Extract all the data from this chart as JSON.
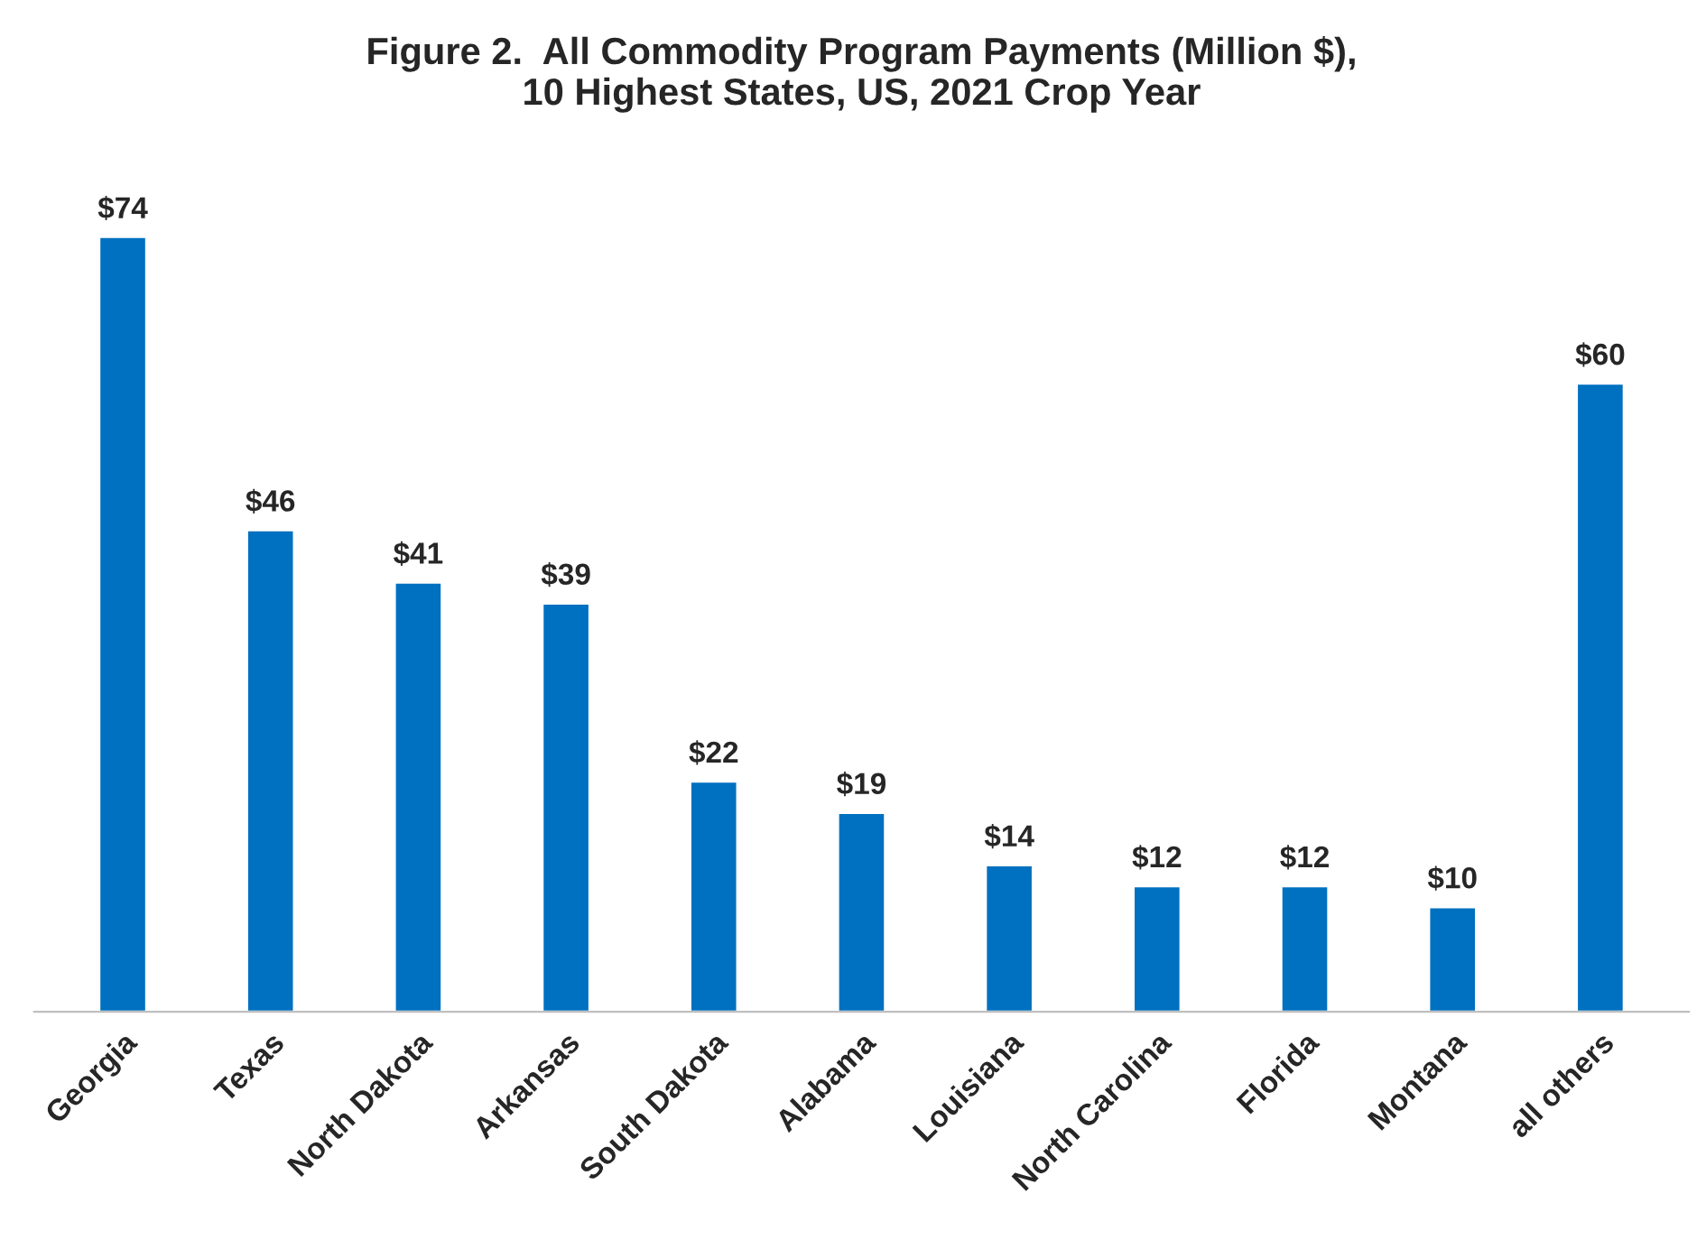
{
  "chart_data": {
    "type": "bar",
    "title": "Figure 2.  All Commodity Program Payments (Million $),\n10 Highest States, US, 2021 Crop Year",
    "categories": [
      "Georgia",
      "Texas",
      "North Dakota",
      "Arkansas",
      "South Dakota",
      "Alabama",
      "Louisiana",
      "North Carolina",
      "Florida",
      "Montana",
      "all others"
    ],
    "values": [
      74,
      46,
      41,
      39,
      22,
      19,
      14,
      12,
      12,
      10,
      60
    ],
    "value_labels": [
      "$74",
      "$46",
      "$41",
      "$39",
      "$22",
      "$19",
      "$14",
      "$12",
      "$12",
      "$10",
      "$60"
    ],
    "color": "#0070c0",
    "grid": false,
    "legend": false
  }
}
